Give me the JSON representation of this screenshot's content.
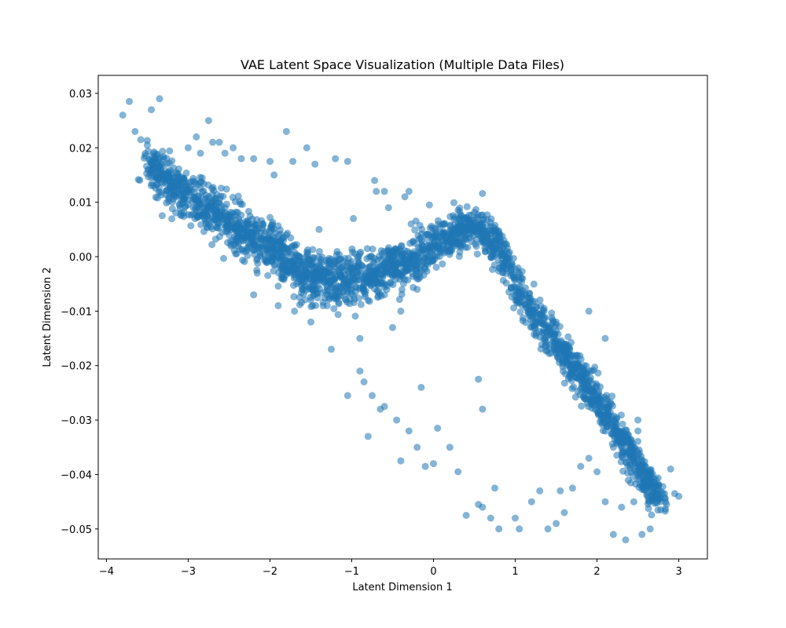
{
  "chart_data": {
    "type": "scatter",
    "title": "VAE Latent Space Visualization (Multiple Data Files)",
    "xlabel": "Latent Dimension 1",
    "ylabel": "Latent Dimension 2",
    "xlim": [
      -4.1,
      3.35
    ],
    "ylim": [
      -0.0555,
      0.0333
    ],
    "xticks": [
      -4,
      -3,
      -2,
      -1,
      0,
      1,
      2,
      3
    ],
    "xtick_labels": [
      "−4",
      "−3",
      "−2",
      "−1",
      "0",
      "1",
      "2",
      "3"
    ],
    "yticks": [
      -0.05,
      -0.04,
      -0.03,
      -0.02,
      -0.01,
      0.0,
      0.01,
      0.02,
      0.03
    ],
    "ytick_labels": [
      "−0.05",
      "−0.04",
      "−0.03",
      "−0.02",
      "−0.01",
      "0.00",
      "0.01",
      "0.02",
      "0.03"
    ],
    "grid": false,
    "marker_color": "#1f77b4",
    "marker_alpha": 0.55,
    "spine": {
      "x": [
        -3.5,
        -3.0,
        -2.6,
        -2.3,
        -2.0,
        -1.8,
        -1.6,
        -1.4,
        -1.1,
        -0.8,
        -0.5,
        -0.2,
        0.0,
        0.2,
        0.5,
        0.7,
        0.9,
        1.0,
        1.2,
        1.5,
        1.8,
        2.1,
        2.4,
        2.6,
        2.8
      ],
      "y": [
        0.017,
        0.011,
        0.0075,
        0.004,
        0.002,
        -0.001,
        -0.003,
        -0.004,
        -0.004,
        -0.004,
        -0.002,
        0.0,
        0.002,
        0.004,
        0.006,
        0.0035,
        -0.001,
        -0.005,
        -0.01,
        -0.016,
        -0.022,
        -0.029,
        -0.036,
        -0.041,
        -0.045
      ]
    },
    "points": {
      "x": [
        -3.8,
        -3.72,
        -3.65,
        -3.58,
        -3.5,
        -3.45,
        -3.35,
        -3.3,
        -3.25,
        -3.1,
        -3.0,
        -2.9,
        -2.85,
        -2.75,
        -2.7,
        -2.62,
        -2.55,
        -2.45,
        -2.35,
        -2.2,
        -2.0,
        -1.95,
        -1.8,
        -1.72,
        -1.55,
        -1.45,
        -1.2,
        -1.05,
        -0.98,
        -0.72,
        -0.7,
        -0.55,
        -0.6,
        -0.3,
        -0.05,
        -0.35,
        -1.35,
        -1.25,
        -1.05,
        -0.85,
        -0.75,
        -0.6,
        -0.45,
        -0.3,
        -0.2,
        -0.1,
        0.05,
        0.2,
        0.3,
        0.55,
        0.6,
        0.7,
        0.8,
        1.0,
        1.05,
        1.2,
        1.3,
        1.4,
        1.5,
        1.55,
        1.6,
        1.7,
        0.6,
        0.75,
        0.4,
        0.55,
        1.8,
        1.9,
        2.0,
        2.1,
        2.2,
        2.3,
        2.35,
        2.45,
        2.55,
        2.65,
        2.75,
        2.85,
        2.95,
        3.0,
        2.2,
        2.5,
        2.9,
        -2.2,
        -1.9,
        -1.7,
        -1.5,
        -1.3,
        -0.9,
        -0.5,
        -0.9,
        -0.8,
        -0.65,
        -0.4,
        0.0,
        -0.15,
        1.5,
        1.9,
        2.1,
        2.5,
        -2.5,
        -2.8,
        -3.2,
        -1.7,
        -1.8,
        -1.6,
        -1.4,
        -1.2,
        -1.0,
        -0.8,
        -0.6,
        -0.4,
        -0.2
      ],
      "y": [
        0.026,
        0.0285,
        0.023,
        0.0215,
        0.0205,
        0.027,
        0.029,
        0.018,
        0.015,
        0.014,
        0.02,
        0.022,
        0.019,
        0.025,
        0.021,
        0.021,
        0.019,
        0.02,
        0.018,
        0.018,
        0.0175,
        0.015,
        0.023,
        0.0175,
        0.02,
        0.017,
        0.018,
        0.0175,
        0.007,
        0.014,
        0.012,
        0.009,
        0.012,
        0.012,
        0.0095,
        0.011,
        -0.009,
        -0.017,
        -0.0255,
        -0.023,
        -0.0255,
        -0.0275,
        -0.03,
        -0.032,
        -0.035,
        -0.0385,
        -0.0315,
        -0.035,
        -0.0395,
        -0.0455,
        -0.046,
        -0.048,
        -0.05,
        -0.048,
        -0.05,
        -0.045,
        -0.043,
        -0.05,
        -0.049,
        -0.043,
        -0.047,
        -0.0425,
        -0.028,
        -0.0425,
        -0.0475,
        -0.0225,
        -0.0385,
        -0.037,
        -0.0395,
        -0.045,
        -0.051,
        -0.046,
        -0.052,
        -0.045,
        -0.051,
        -0.05,
        -0.042,
        -0.0455,
        -0.0435,
        -0.044,
        -0.035,
        -0.032,
        -0.039,
        -0.007,
        -0.009,
        -0.01,
        -0.012,
        -0.009,
        -0.015,
        -0.013,
        -0.021,
        -0.033,
        -0.028,
        -0.0375,
        -0.038,
        -0.024,
        -0.012,
        -0.01,
        -0.015,
        -0.03,
        0.004,
        0.007,
        0.012,
        -0.002,
        0.004,
        -0.006,
        0.005,
        -0.001,
        -0.006,
        -0.008,
        -0.007,
        -0.01,
        -0.006
      ]
    }
  }
}
